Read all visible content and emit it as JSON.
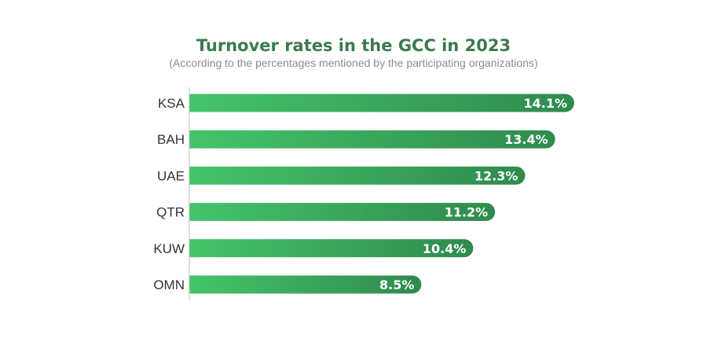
{
  "chart_data": {
    "type": "bar",
    "orientation": "horizontal",
    "title": "Turnover rates in the GCC in 2023",
    "subtitle": "(According to the percentages mentioned by the participating organizations)",
    "categories": [
      "KSA",
      "BAH",
      "UAE",
      "QTR",
      "KUW",
      "OMN"
    ],
    "values": [
      14.1,
      13.4,
      12.3,
      11.2,
      10.4,
      8.5
    ],
    "value_labels": [
      "14.1%",
      "13.4%",
      "12.3%",
      "11.2%",
      "10.4%",
      "8.5%"
    ],
    "unit": "%",
    "xlim": [
      0,
      14.1
    ],
    "grid": false,
    "legend": "none"
  },
  "colors": {
    "title": "#3c7a4e",
    "subtitle": "#8c8c8c",
    "bar_start": "#45c46a",
    "bar_end": "#2f8a4e",
    "axis_line": "#bbbbbb",
    "value_text": "#ffffff",
    "category_text": "#333333"
  }
}
